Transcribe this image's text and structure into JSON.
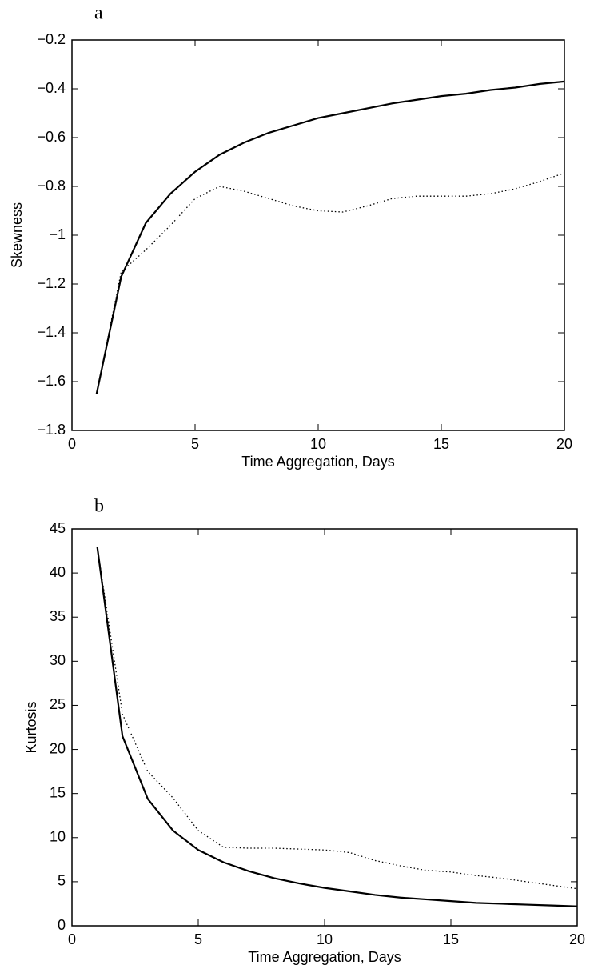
{
  "chart_data": [
    {
      "type": "line",
      "title": "a",
      "xlabel": "Time Aggregation, Days",
      "ylabel": "Skewness",
      "x": [
        1,
        2,
        3,
        4,
        5,
        6,
        7,
        8,
        9,
        10,
        11,
        12,
        13,
        14,
        15,
        16,
        17,
        18,
        19,
        20
      ],
      "series": [
        {
          "color": "#000000",
          "style": "solid",
          "values": [
            -1.65,
            -1.17,
            -0.95,
            -0.83,
            -0.74,
            -0.67,
            -0.62,
            -0.58,
            -0.55,
            -0.52,
            -0.5,
            -0.48,
            -0.46,
            -0.445,
            -0.43,
            -0.42,
            -0.405,
            -0.395,
            -0.38,
            -0.37
          ]
        },
        {
          "color": "#000000",
          "style": "dotted",
          "values": [
            -1.65,
            -1.15,
            -1.06,
            -0.96,
            -0.85,
            -0.8,
            -0.82,
            -0.85,
            -0.88,
            -0.9,
            -0.905,
            -0.88,
            -0.85,
            -0.84,
            -0.84,
            -0.84,
            -0.83,
            -0.81,
            -0.78,
            -0.745
          ]
        }
      ],
      "xlim": [
        0,
        20
      ],
      "xticks": [
        0,
        5,
        10,
        15,
        20
      ],
      "ylim": [
        -1.8,
        -0.2
      ],
      "yticks": [
        {
          "value": -1.8,
          "label": "−1.8"
        },
        {
          "value": -1.6,
          "label": "−1.6"
        },
        {
          "value": -1.4,
          "label": "−1.4"
        },
        {
          "value": -1.2,
          "label": "−1.2"
        },
        {
          "value": -1,
          "label": "−1"
        },
        {
          "value": -0.8,
          "label": "−0.8"
        },
        {
          "value": -0.6,
          "label": "−0.6"
        },
        {
          "value": -0.4,
          "label": "−0.4"
        },
        {
          "value": -0.2,
          "label": "−0.2"
        }
      ]
    },
    {
      "type": "line",
      "title": "b",
      "xlabel": "Time Aggregation, Days",
      "ylabel": "Kurtosis",
      "x": [
        1,
        2,
        3,
        4,
        5,
        6,
        7,
        8,
        9,
        10,
        11,
        12,
        13,
        14,
        15,
        16,
        17,
        18,
        19,
        20
      ],
      "series": [
        {
          "color": "#000000",
          "style": "solid",
          "values": [
            43,
            21.5,
            14.4,
            10.8,
            8.6,
            7.2,
            6.2,
            5.4,
            4.8,
            4.3,
            3.9,
            3.5,
            3.2,
            3.0,
            2.8,
            2.6,
            2.5,
            2.4,
            2.3,
            2.2
          ]
        },
        {
          "color": "#000000",
          "style": "dotted",
          "values": [
            43,
            24,
            17.5,
            14.5,
            10.8,
            8.9,
            8.8,
            8.8,
            8.7,
            8.6,
            8.3,
            7.4,
            6.8,
            6.3,
            6.1,
            5.7,
            5.4,
            5.0,
            4.6,
            4.2
          ]
        }
      ],
      "xlim": [
        0,
        20
      ],
      "xticks": [
        0,
        5,
        10,
        15,
        20
      ],
      "ylim": [
        0,
        45
      ],
      "yticks": [
        0,
        5,
        10,
        15,
        20,
        25,
        30,
        35,
        40,
        45
      ]
    }
  ]
}
